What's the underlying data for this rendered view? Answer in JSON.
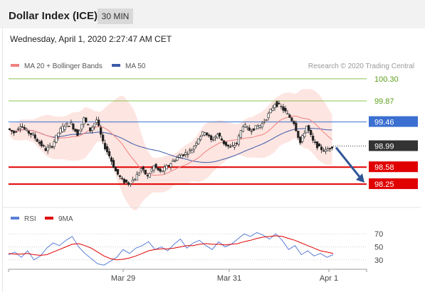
{
  "header": {
    "title": "Dollar Index (ICE)",
    "timeframe": "30 MIN"
  },
  "subheader": {
    "datetime": "Wednesday, April 1, 2020 2:27:47 AM CET"
  },
  "legend": {
    "ma20_label": "MA 20 + Bollinger Bands",
    "ma50_label": "MA 50",
    "credit": "Research © 2020 Trading Central",
    "rsi_label": "RSI",
    "ma9_label": "9MA"
  },
  "colors": {
    "ma20": "#f08080",
    "band": "#fde0dc",
    "ma50": "#3b5ba9",
    "resistance": "#8cc152",
    "pivot": "#3b6fd1",
    "support": "#e00000",
    "last": "#333333",
    "rsi": "#5b7fd6",
    "rsi_ma": "#e00000",
    "candle": "#222222"
  },
  "chart_data": [
    {
      "type": "candlestick",
      "title": "Dollar Index (ICE)",
      "interval": "30 MIN",
      "ylim": [
        97.85,
        100.45
      ],
      "levels": [
        {
          "value": 100.3,
          "label": "100.30",
          "kind": "resistance"
        },
        {
          "value": 99.87,
          "label": "99.87",
          "kind": "resistance"
        },
        {
          "value": 99.46,
          "label": "99.46",
          "kind": "pivot"
        },
        {
          "value": 98.99,
          "label": "98.99",
          "kind": "last"
        },
        {
          "value": 98.58,
          "label": "98.58",
          "kind": "support"
        },
        {
          "value": 98.25,
          "label": "98.25",
          "kind": "support"
        }
      ],
      "series_close_path": [
        99.33,
        99.25,
        99.4,
        99.28,
        99.2,
        99.05,
        98.92,
        99.0,
        99.25,
        99.4,
        99.42,
        99.22,
        99.52,
        99.3,
        99.5,
        99.05,
        98.8,
        98.5,
        98.32,
        98.26,
        98.36,
        98.55,
        98.4,
        98.6,
        98.48,
        98.58,
        98.7,
        98.8,
        98.85,
        98.92,
        99.15,
        99.28,
        99.1,
        99.22,
        99.05,
        98.95,
        99.05,
        99.4,
        99.3,
        99.35,
        99.42,
        99.6,
        99.82,
        99.75,
        99.6,
        99.45,
        99.05,
        99.38,
        99.08,
        98.95,
        98.9,
        98.99
      ],
      "forecast": {
        "from": 98.99,
        "to": 98.25
      },
      "x_ticks": [
        "Mar 29",
        "Mar 31",
        "Apr 1"
      ]
    },
    {
      "type": "line",
      "ylim": [
        20,
        80
      ],
      "y_ticks": [
        70,
        50,
        30
      ],
      "series": [
        {
          "name": "RSI",
          "values": [
            38,
            42,
            34,
            44,
            30,
            36,
            48,
            56,
            52,
            60,
            66,
            50,
            40,
            32,
            24,
            22,
            28,
            34,
            46,
            40,
            48,
            52,
            58,
            46,
            50,
            44,
            54,
            62,
            48,
            56,
            60,
            52,
            46,
            58,
            50,
            54,
            62,
            70,
            66,
            72,
            68,
            62,
            70,
            60,
            46,
            52,
            38,
            44,
            36,
            40,
            34,
            38
          ]
        },
        {
          "name": "9MA",
          "values": [
            40,
            39,
            39,
            40,
            38,
            37,
            38,
            42,
            46,
            50,
            54,
            55,
            52,
            48,
            42,
            36,
            32,
            30,
            31,
            33,
            36,
            40,
            44,
            46,
            47,
            47,
            48,
            50,
            52,
            52,
            54,
            55,
            54,
            54,
            53,
            54,
            55,
            58,
            60,
            63,
            65,
            66,
            67,
            66,
            63,
            60,
            56,
            52,
            48,
            44,
            42,
            40
          ]
        }
      ],
      "x_ticks": [
        "Mar 29",
        "Mar 31",
        "Apr 1"
      ]
    }
  ]
}
